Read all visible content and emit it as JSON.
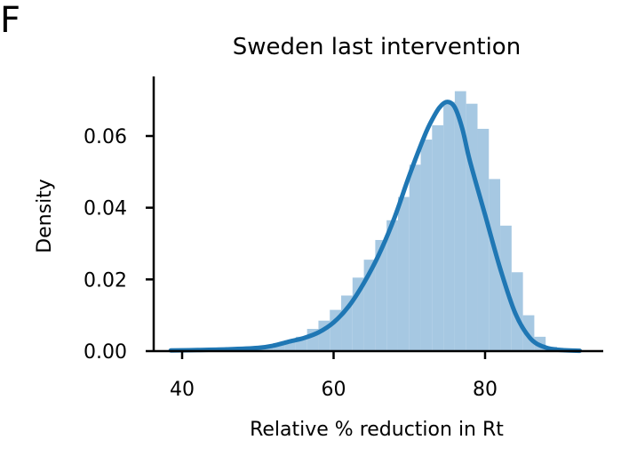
{
  "panel_label": "F",
  "chart_data": {
    "type": "bar",
    "title": "Sweden last intervention",
    "xlabel": "Relative % reduction in Rt",
    "ylabel": "Density",
    "xlim": [
      35,
      95
    ],
    "ylim": [
      0,
      0.076
    ],
    "xticks": [
      40,
      60,
      80
    ],
    "xtick_labels": [
      "40",
      "60",
      "80"
    ],
    "yticks": [
      0.0,
      0.02,
      0.04,
      0.06
    ],
    "ytick_labels": [
      "0.00",
      "0.02",
      "0.04",
      "0.06"
    ],
    "grid": false,
    "histogram": {
      "bin_edges": [
        38.5,
        40.0,
        41.5,
        43.0,
        44.5,
        46.0,
        47.5,
        49.0,
        50.5,
        52.0,
        53.5,
        55.0,
        56.5,
        58.0,
        59.5,
        61.0,
        62.5,
        64.0,
        65.5,
        67.0,
        68.5,
        70.0,
        71.5,
        73.0,
        74.5,
        76.0,
        77.5,
        79.0,
        80.5,
        82.0,
        83.5,
        85.0,
        86.5,
        88.0,
        89.5,
        91.0,
        92.5
      ],
      "density": [
        0.0002,
        0.0002,
        0.0002,
        0.0003,
        0.0003,
        0.0004,
        0.0005,
        0.0008,
        0.0013,
        0.0022,
        0.003,
        0.004,
        0.0062,
        0.0085,
        0.0115,
        0.0155,
        0.0205,
        0.0255,
        0.031,
        0.0365,
        0.043,
        0.052,
        0.059,
        0.063,
        0.0695,
        0.0725,
        0.069,
        0.062,
        0.048,
        0.035,
        0.022,
        0.01,
        0.004,
        0.0012,
        0.0004,
        0.0002
      ],
      "color": "#a6c8e2"
    },
    "kde": {
      "x": [
        38.5,
        42,
        46,
        50,
        52,
        54,
        56,
        58,
        60,
        62,
        64,
        66,
        68,
        70,
        72,
        73,
        74,
        75,
        76,
        77,
        78,
        80,
        82,
        84,
        86,
        88,
        90,
        92.5
      ],
      "y": [
        0.0002,
        0.0003,
        0.0005,
        0.0009,
        0.0015,
        0.0026,
        0.0036,
        0.0052,
        0.008,
        0.0125,
        0.019,
        0.027,
        0.037,
        0.049,
        0.06,
        0.0645,
        0.068,
        0.0695,
        0.068,
        0.062,
        0.053,
        0.038,
        0.023,
        0.0105,
        0.0035,
        0.001,
        0.0003,
        0.0001
      ],
      "color": "#1f77b4"
    }
  }
}
